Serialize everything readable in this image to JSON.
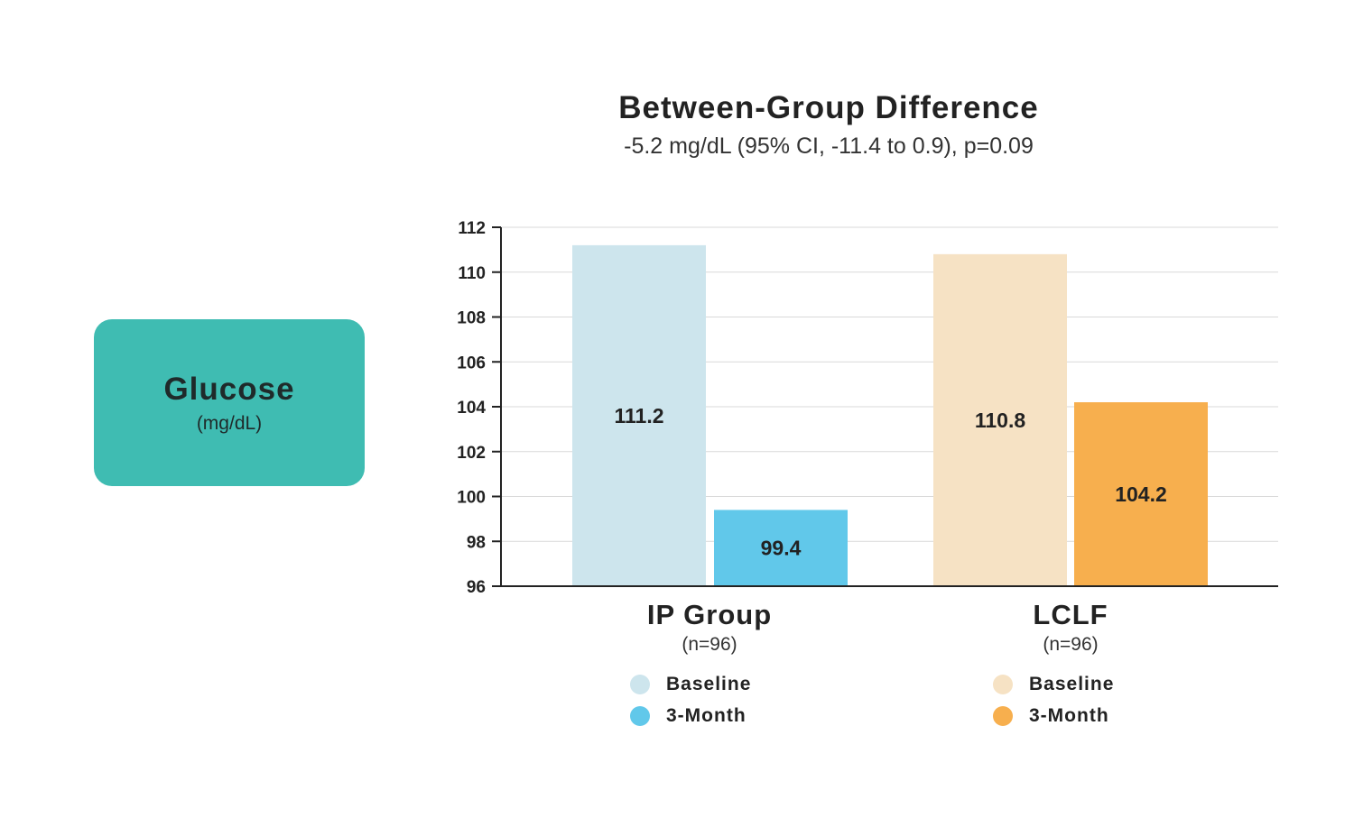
{
  "side_label": {
    "title": "Glucose",
    "unit": "(mg/dL)"
  },
  "colors": {
    "ip_baseline": "#cde5ed",
    "ip_3month": "#61c8ea",
    "lclf_baseline": "#f6e2c4",
    "lclf_3month": "#f7af4e",
    "label_box": "#3fbcb2"
  },
  "groups": [
    {
      "name": "IP Group",
      "n": "(n=96)",
      "legend": [
        "Baseline",
        "3-Month"
      ]
    },
    {
      "name": "LCLF",
      "n": "(n=96)",
      "legend": [
        "Baseline",
        "3-Month"
      ]
    }
  ],
  "chart_data": {
    "type": "bar",
    "title": "Between-Group Difference",
    "subtitle": "-5.2 mg/dL (95% CI, -11.4 to 0.9), p=0.09",
    "categories": [
      "IP Group",
      "LCLF"
    ],
    "series": [
      {
        "name": "Baseline",
        "values": [
          111.2,
          110.8
        ],
        "labels": [
          "111.2",
          "110.8"
        ]
      },
      {
        "name": "3-Month",
        "values": [
          99.4,
          104.2
        ],
        "labels": [
          "99.4",
          "104.2"
        ]
      }
    ],
    "ylim": [
      96,
      112
    ],
    "yticks": [
      96,
      98,
      100,
      102,
      104,
      106,
      108,
      110,
      112
    ],
    "grid": true,
    "legend": "below each group"
  }
}
